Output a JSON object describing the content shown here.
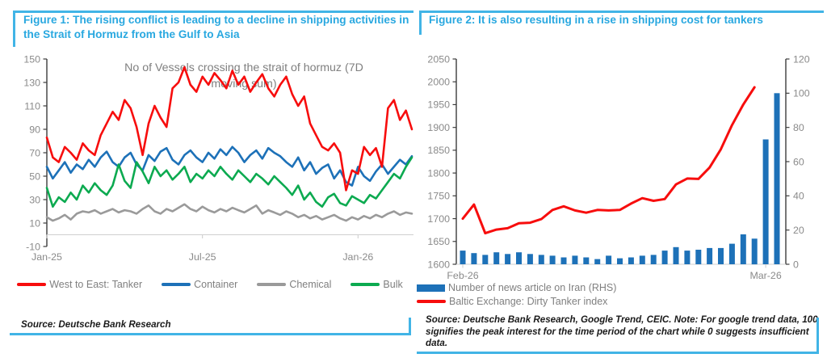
{
  "figure1": {
    "title": "Figure 1: The rising conflict is leading to a decline in shipping activities in the Strait of Hormuz from the Gulf to Asia",
    "source": "Source: Deutsche Bank Research"
  },
  "figure2": {
    "title": "Figure 2: It is also resulting in a rise in shipping cost for tankers",
    "source": "Source: Deutsche Bank Research, Google Trend, CEIC. Note: For google trend data, 100 signifies the peak interest for the time period of the chart while 0 suggests insufficient data."
  },
  "colors": {
    "accent_blue": "#29a8e0",
    "rule_blue": "#41b4e6",
    "series_red": "#f70d0d",
    "series_blue": "#1d71b8",
    "series_green": "#0caa50",
    "series_gray": "#9a9a9a",
    "axis_line": "#3c3c3c",
    "axis_light": "#cfcfcf",
    "tick_text": "#8a8a8a"
  },
  "chart_data": [
    {
      "type": "line",
      "title": "No of Vessels crossing the strait of hormuz (7D moving sum)",
      "title_lines": [
        "No of Vessels crossing the strait of hormuz (7D",
        "moving sum)"
      ],
      "ylim": [
        -10,
        150
      ],
      "y_ticks": [
        150,
        130,
        110,
        90,
        70,
        50,
        30,
        10,
        -10
      ],
      "x_tick_labels": [
        "Jan-25",
        "Jul-25",
        "Jan-26"
      ],
      "x_tick_index": [
        0,
        26,
        52
      ],
      "zero_line": 0,
      "grid": false,
      "legend_position": "bottom",
      "series": [
        {
          "name": "West to East: Tanker",
          "color": "#f70d0d",
          "values": [
            83,
            66,
            62,
            75,
            70,
            64,
            78,
            72,
            68,
            85,
            95,
            105,
            98,
            115,
            108,
            92,
            68,
            95,
            110,
            100,
            92,
            125,
            130,
            143,
            128,
            122,
            135,
            128,
            138,
            132,
            125,
            140,
            128,
            135,
            122,
            130,
            137,
            125,
            118,
            128,
            135,
            120,
            110,
            118,
            95,
            85,
            75,
            72,
            78,
            70,
            38,
            55,
            52,
            75,
            68,
            74,
            58,
            108,
            115,
            98,
            106,
            90
          ]
        },
        {
          "name": "Container",
          "color": "#1d71b8",
          "values": [
            58,
            48,
            55,
            62,
            53,
            60,
            56,
            64,
            58,
            66,
            71,
            62,
            58,
            66,
            70,
            60,
            55,
            68,
            63,
            71,
            74,
            64,
            60,
            68,
            72,
            66,
            62,
            70,
            65,
            73,
            68,
            75,
            70,
            62,
            68,
            72,
            65,
            74,
            70,
            67,
            62,
            58,
            66,
            55,
            62,
            52,
            57,
            60,
            48,
            55,
            45,
            42,
            58,
            50,
            46,
            54,
            60,
            52,
            58,
            64,
            60,
            67
          ]
        },
        {
          "name": "Chemical",
          "color": "#9a9a9a",
          "values": [
            15,
            12,
            14,
            17,
            13,
            18,
            20,
            19,
            21,
            18,
            20,
            22,
            19,
            21,
            20,
            18,
            22,
            25,
            20,
            18,
            22,
            20,
            23,
            26,
            22,
            20,
            24,
            21,
            19,
            22,
            20,
            23,
            21,
            19,
            22,
            25,
            18,
            21,
            19,
            17,
            20,
            18,
            15,
            17,
            14,
            16,
            13,
            15,
            17,
            14,
            12,
            15,
            13,
            16,
            14,
            17,
            15,
            18,
            20,
            17,
            19,
            18
          ]
        },
        {
          "name": "Bulk",
          "color": "#0caa50",
          "values": [
            40,
            24,
            32,
            28,
            36,
            30,
            42,
            36,
            44,
            38,
            34,
            42,
            60,
            46,
            40,
            62,
            54,
            44,
            58,
            50,
            55,
            47,
            52,
            58,
            45,
            52,
            48,
            55,
            50,
            58,
            52,
            47,
            55,
            50,
            45,
            52,
            48,
            43,
            50,
            45,
            40,
            34,
            42,
            30,
            36,
            28,
            24,
            32,
            35,
            27,
            25,
            33,
            30,
            27,
            34,
            31,
            38,
            45,
            52,
            48,
            58,
            66
          ]
        }
      ]
    },
    {
      "type": "bar+line",
      "left_axis": {
        "lim": [
          1600,
          2050
        ],
        "ticks": [
          2050,
          2000,
          1950,
          1900,
          1850,
          1800,
          1750,
          1700,
          1650,
          1600
        ]
      },
      "right_axis": {
        "lim": [
          0,
          120
        ],
        "ticks": [
          120,
          100,
          80,
          60,
          40,
          20,
          0
        ]
      },
      "x_tick_labels": [
        "Feb-26",
        "Mar-26"
      ],
      "x_tick_index": [
        0,
        27
      ],
      "legend_position": "bottom",
      "bars": {
        "name": "Number of news article on Iran (RHS)",
        "axis": "right",
        "color": "#1d71b8",
        "values": [
          8,
          6.5,
          5.5,
          7,
          6,
          7,
          6,
          5.5,
          5,
          4,
          5,
          4,
          3,
          5,
          3.5,
          4,
          5,
          5.5,
          8,
          10,
          8,
          8.5,
          9.5,
          9.5,
          12,
          17.5,
          15,
          73,
          100
        ]
      },
      "line": {
        "name": "Baltic Exchange: Dirty Tanker index",
        "axis": "left",
        "color": "#f70d0d",
        "values": [
          1700,
          1731,
          1668,
          1676,
          1679,
          1690,
          1691,
          1699,
          1719,
          1727,
          1718,
          1713,
          1719,
          1718,
          1719,
          1733,
          1745,
          1739,
          1743,
          1775,
          1788,
          1787,
          1812,
          1852,
          1905,
          1950,
          1988
        ]
      }
    }
  ]
}
